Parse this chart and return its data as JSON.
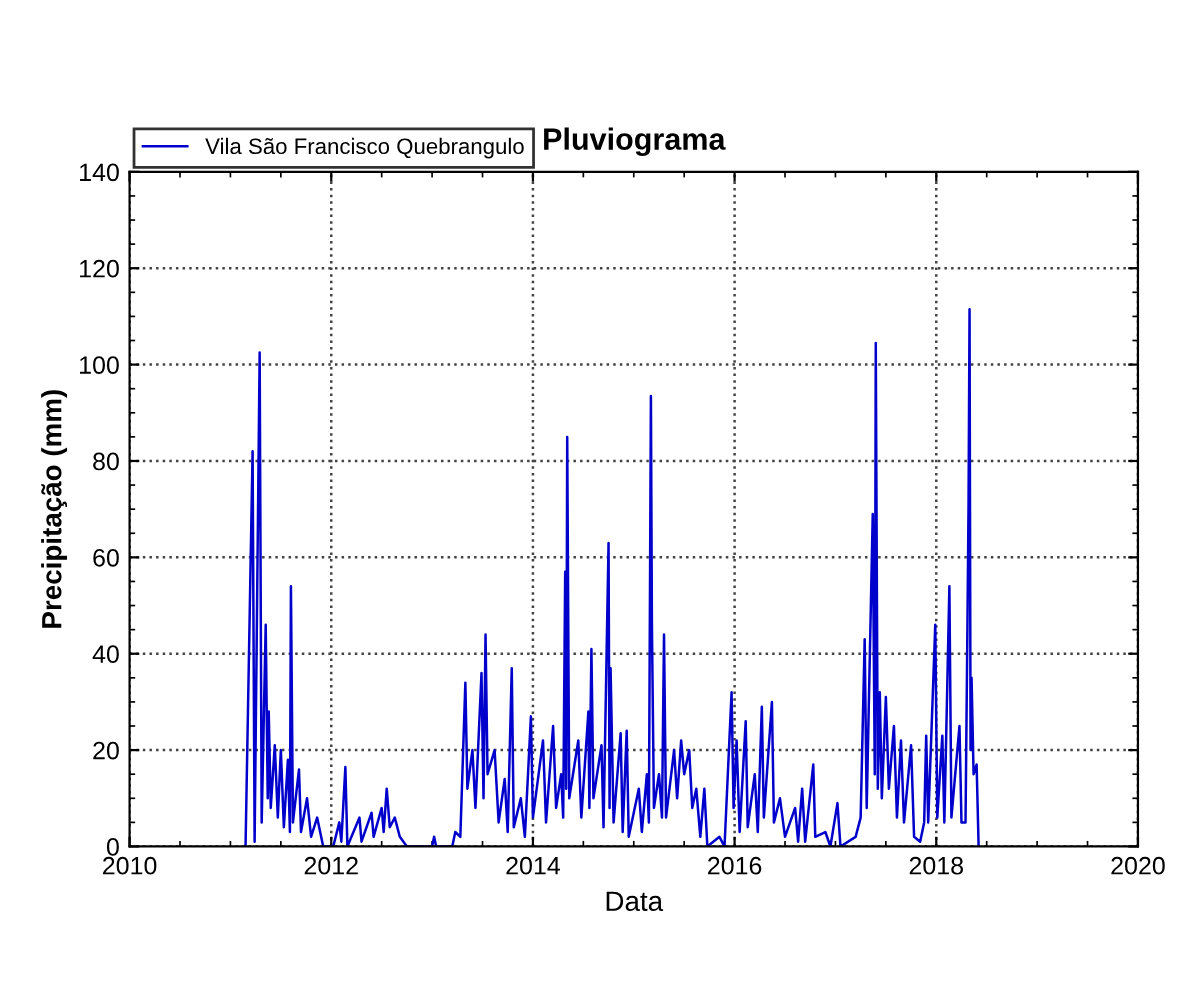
{
  "chart_data": {
    "type": "line",
    "title": "Pluviograma",
    "xlabel": "Data",
    "ylabel": "Precipitação (mm)",
    "xlim": [
      2010,
      2020
    ],
    "xticks": [
      2010,
      2012,
      2014,
      2016,
      2018,
      2020
    ],
    "ylim": [
      0,
      140
    ],
    "yticks": [
      0,
      20,
      40,
      60,
      80,
      100,
      120,
      140
    ],
    "grid": true,
    "legend": "top left",
    "marker": "none",
    "line_style": "solid",
    "series": [
      {
        "name": "Vila São Francisco Quebrangulo",
        "color": "#0000cc",
        "x": [
          2011.15,
          2011.22,
          2011.24,
          2011.29,
          2011.31,
          2011.35,
          2011.37,
          2011.38,
          2011.4,
          2011.44,
          2011.47,
          2011.5,
          2011.53,
          2011.57,
          2011.59,
          2011.6,
          2011.62,
          2011.68,
          2011.7,
          2011.76,
          2011.8,
          2011.86,
          2011.92,
          2012.02,
          2012.08,
          2012.1,
          2012.14,
          2012.16,
          2012.28,
          2012.3,
          2012.4,
          2012.42,
          2012.5,
          2012.52,
          2012.55,
          2012.58,
          2012.63,
          2012.68,
          2012.75,
          2013.0,
          2013.02,
          2013.04,
          2013.2,
          2013.23,
          2013.28,
          2013.33,
          2013.35,
          2013.4,
          2013.43,
          2013.49,
          2013.51,
          2013.53,
          2013.55,
          2013.62,
          2013.66,
          2013.72,
          2013.75,
          2013.79,
          2013.81,
          2013.88,
          2013.92,
          2013.98,
          2014.0,
          2014.1,
          2014.13,
          2014.2,
          2014.23,
          2014.28,
          2014.3,
          2014.32,
          2014.33,
          2014.34,
          2014.36,
          2014.45,
          2014.48,
          2014.55,
          2014.56,
          2014.58,
          2014.6,
          2014.68,
          2014.7,
          2014.75,
          2014.76,
          2014.77,
          2014.8,
          2014.87,
          2014.89,
          2014.93,
          2014.95,
          2015.05,
          2015.08,
          2015.13,
          2015.15,
          2015.17,
          2015.18,
          2015.2,
          2015.25,
          2015.28,
          2015.3,
          2015.32,
          2015.4,
          2015.43,
          2015.47,
          2015.5,
          2015.55,
          2015.58,
          2015.62,
          2015.66,
          2015.7,
          2015.73,
          2015.85,
          2015.9,
          2015.97,
          2015.99,
          2016.02,
          2016.05,
          2016.11,
          2016.13,
          2016.2,
          2016.23,
          2016.27,
          2016.29,
          2016.37,
          2016.39,
          2016.45,
          2016.5,
          2016.6,
          2016.63,
          2016.67,
          2016.7,
          2016.78,
          2016.8,
          2016.9,
          2016.95,
          2017.02,
          2017.05,
          2017.2,
          2017.25,
          2017.29,
          2017.31,
          2017.37,
          2017.39,
          2017.4,
          2017.42,
          2017.44,
          2017.46,
          2017.5,
          2017.53,
          2017.58,
          2017.61,
          2017.65,
          2017.68,
          2017.75,
          2017.78,
          2017.84,
          2017.88,
          2017.9,
          2017.92,
          2017.99,
          2018.01,
          2018.06,
          2018.08,
          2018.13,
          2018.15,
          2018.23,
          2018.25,
          2018.29,
          2018.31,
          2018.32,
          2018.33,
          2018.34,
          2018.35,
          2018.37,
          2018.4,
          2018.42
        ],
        "values": [
          0,
          82,
          1,
          102.5,
          5,
          46,
          10,
          28,
          8,
          21,
          6,
          20,
          4,
          18,
          3,
          54,
          5,
          16,
          3,
          10,
          2,
          6,
          0,
          0,
          5,
          1,
          16.5,
          0,
          6,
          1,
          7,
          2,
          8,
          3,
          12,
          4,
          6,
          2,
          0,
          0,
          2,
          0,
          0,
          3,
          2,
          34,
          12,
          20,
          8,
          36,
          10,
          44,
          15,
          20,
          5,
          14,
          3,
          37,
          4,
          10,
          2,
          27,
          6,
          22,
          5,
          25,
          8,
          15,
          6,
          57,
          12,
          85,
          10,
          22,
          6,
          28,
          8,
          41,
          10,
          21,
          4,
          63,
          8,
          37,
          5,
          23.5,
          3,
          24,
          2,
          12,
          3,
          15,
          5,
          93.5,
          46,
          8,
          15,
          6,
          44,
          6,
          20,
          10,
          22,
          15,
          20,
          8,
          12,
          2,
          12,
          0,
          2,
          0,
          32,
          8,
          22,
          3,
          26,
          4,
          15,
          3,
          29,
          6,
          30,
          5,
          10,
          2,
          8,
          1,
          12,
          1,
          17,
          2,
          3,
          0,
          9,
          0,
          2,
          6,
          43,
          8,
          69,
          15,
          104.5,
          12,
          32,
          10,
          31,
          12,
          25,
          6,
          22,
          5,
          21,
          2,
          1,
          5,
          23,
          5,
          46,
          6,
          23,
          5,
          54,
          6,
          25,
          5,
          5,
          48,
          71,
          111.5,
          20,
          35,
          15,
          17,
          0
        ]
      }
    ]
  }
}
